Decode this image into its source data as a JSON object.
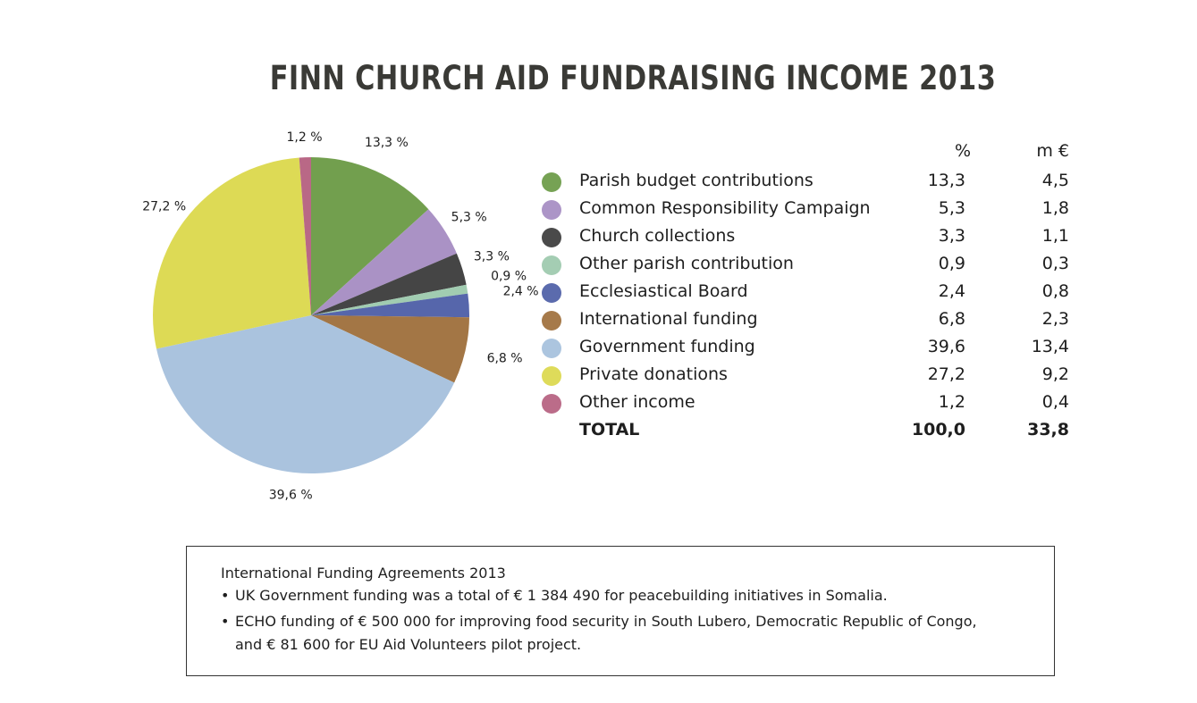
{
  "title": "FINN CHURCH AID FUNDRAISING INCOME 2013",
  "chart_data": {
    "type": "pie",
    "title": "FINN CHURCH AID FUNDRAISING INCOME 2013",
    "columns": [
      "%",
      "m €"
    ],
    "slices": [
      {
        "label": "Parish budget contributions",
        "percent": "13,3",
        "meur": "4,5",
        "value": 13.3,
        "slice_label": "13,3 %",
        "color": "#6a9a45"
      },
      {
        "label": "Common Responsibility Campaign",
        "percent": "5,3",
        "meur": "1,8",
        "value": 5.3,
        "slice_label": "5,3 %",
        "color": "#a58cc2"
      },
      {
        "label": "Church collections",
        "percent": "3,3",
        "meur": "1,1",
        "value": 3.3,
        "slice_label": "3,3 %",
        "color": "#3b3b3b"
      },
      {
        "label": "Other parish contribution",
        "percent": "0,9",
        "meur": "0,3",
        "value": 0.9,
        "slice_label": "0,9 %",
        "color": "#9cc9ad"
      },
      {
        "label": "Ecclesiastical Board",
        "percent": "2,4",
        "meur": "0,8",
        "value": 2.4,
        "slice_label": "2,4 %",
        "color": "#4d5ea6"
      },
      {
        "label": "International funding",
        "percent": "6,8",
        "meur": "2,3",
        "value": 6.8,
        "slice_label": "6,8 %",
        "color": "#9e6f3b"
      },
      {
        "label": "Government funding",
        "percent": "39,6",
        "meur": "13,4",
        "value": 39.6,
        "slice_label": "39,6 %",
        "color": "#a5c0dc"
      },
      {
        "label": "Private donations",
        "percent": "27,2",
        "meur": "9,2",
        "value": 27.2,
        "slice_label": "27,2 %",
        "color": "#dbd84c"
      },
      {
        "label": "Other income",
        "percent": "1,2",
        "meur": "0,4",
        "value": 1.2,
        "slice_label": "1,2 %",
        "color": "#b5607f"
      }
    ],
    "total": {
      "label": "TOTAL",
      "percent": "100,0",
      "meur": "33,8"
    }
  },
  "note": {
    "title": "International Funding Agreements 2013",
    "bullets": [
      "UK Government funding was a total of € 1 384 490 for peacebuilding initiatives in Somalia.",
      "ECHO funding of € 500 000 for improving food security in South Lubero, Democratic Republic of Congo,",
      "and € 81 600 for EU Aid Volunteers pilot project."
    ],
    "bullet_char": "•"
  }
}
